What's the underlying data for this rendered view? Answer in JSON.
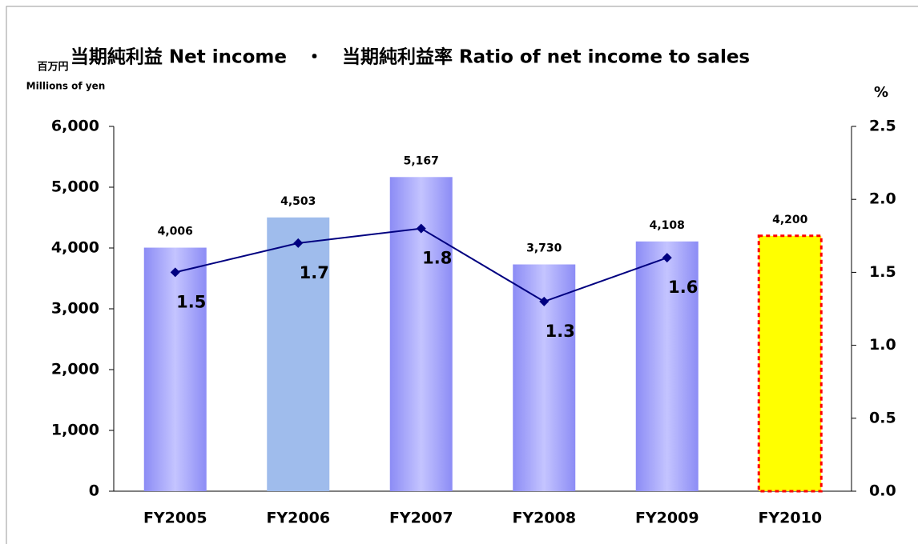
{
  "chart_data": {
    "type": "bar_line",
    "title": "当期純利益 Net income　・　当期純利益率 Ratio of net income to sales",
    "y_label": "百万円",
    "y_label_sub": "Millions of yen",
    "y2_label": "%",
    "categories": [
      "FY2005",
      "FY2006",
      "FY2007",
      "FY2008",
      "FY2009",
      "FY2010"
    ],
    "ylim": [
      0,
      6000
    ],
    "yticks": [
      0,
      {
        "value": 1000,
        "label": "1,000"
      },
      {
        "value": 2000,
        "label": "2,000"
      },
      {
        "value": 3000,
        "label": "3,000"
      },
      {
        "value": 4000,
        "label": "4,000"
      },
      {
        "value": 5000,
        "label": "5,000"
      },
      {
        "value": 6000,
        "label": "6,000"
      }
    ],
    "y2lim": [
      0,
      2.5
    ],
    "y2ticks": [
      {
        "value": 0,
        "label": "0.0"
      },
      0.5,
      {
        "value": 1,
        "label": "1.0"
      },
      1.5,
      {
        "value": 2,
        "label": "2.0"
      },
      2.5
    ],
    "series": [
      {
        "type": "bar",
        "colors": [
          "#9d9dff",
          "#9fbcec",
          "#9d9dff",
          "#9d9dff",
          "#9d9dff",
          "#ffff00"
        ],
        "edge_colors": [
          null,
          null,
          null,
          null,
          null,
          "#ff0000"
        ],
        "values": [
          4006,
          4503,
          5167,
          3730,
          4108,
          4200
        ],
        "value_labels": [
          "4,006",
          "4,503",
          "5,167",
          "3,730",
          "4,108",
          "4,200"
        ]
      },
      {
        "type": "line",
        "axis": "y2",
        "color": "#000080",
        "values": [
          1.5,
          1.7,
          1.8,
          1.3,
          1.6,
          null
        ]
      }
    ]
  }
}
